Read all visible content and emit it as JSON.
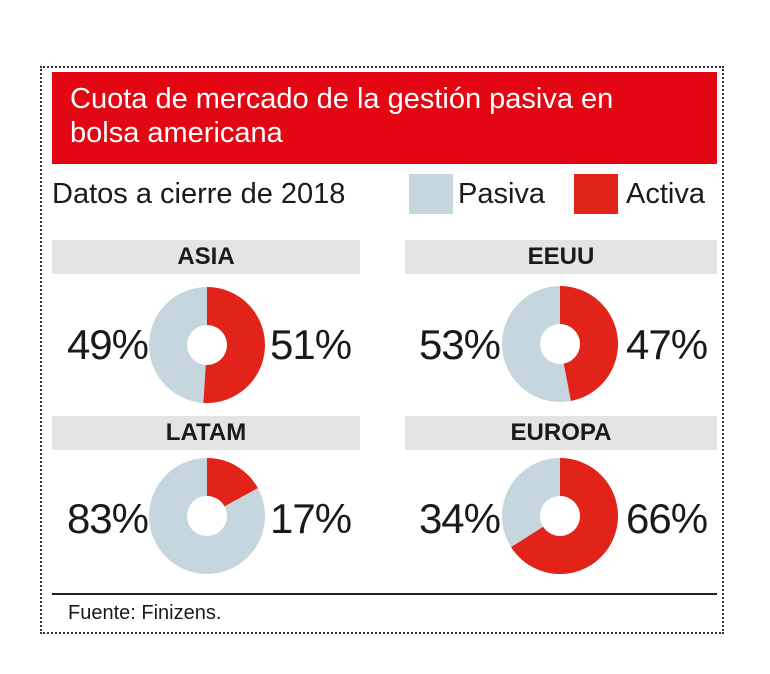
{
  "header": {
    "title": "Cuota de mercado de la gestión pasiva en bolsa americana",
    "subtitle": "Datos a cierre de 2018"
  },
  "legend": {
    "pasiva_label": "Pasiva",
    "activa_label": "Activa"
  },
  "colors": {
    "title_background": "#e30613",
    "pasiva": "#c6d6df",
    "activa": "#e2231a",
    "header_background": "#e4e4e4"
  },
  "chart_data": [
    {
      "type": "pie",
      "title": "ASIA",
      "categories": [
        "Pasiva",
        "Activa"
      ],
      "values": [
        49,
        51
      ],
      "labels": [
        "49%",
        "51%"
      ]
    },
    {
      "type": "pie",
      "title": "EEUU",
      "categories": [
        "Pasiva",
        "Activa"
      ],
      "values": [
        53,
        47
      ],
      "labels": [
        "53%",
        "47%"
      ]
    },
    {
      "type": "pie",
      "title": "LATAM",
      "categories": [
        "Pasiva",
        "Activa"
      ],
      "values": [
        83,
        17
      ],
      "labels": [
        "83%",
        "17%"
      ]
    },
    {
      "type": "pie",
      "title": "EUROPA",
      "categories": [
        "Pasiva",
        "Activa"
      ],
      "values": [
        34,
        66
      ],
      "labels": [
        "34%",
        "66%"
      ]
    }
  ],
  "footer": {
    "source": "Fuente: Finizens."
  }
}
